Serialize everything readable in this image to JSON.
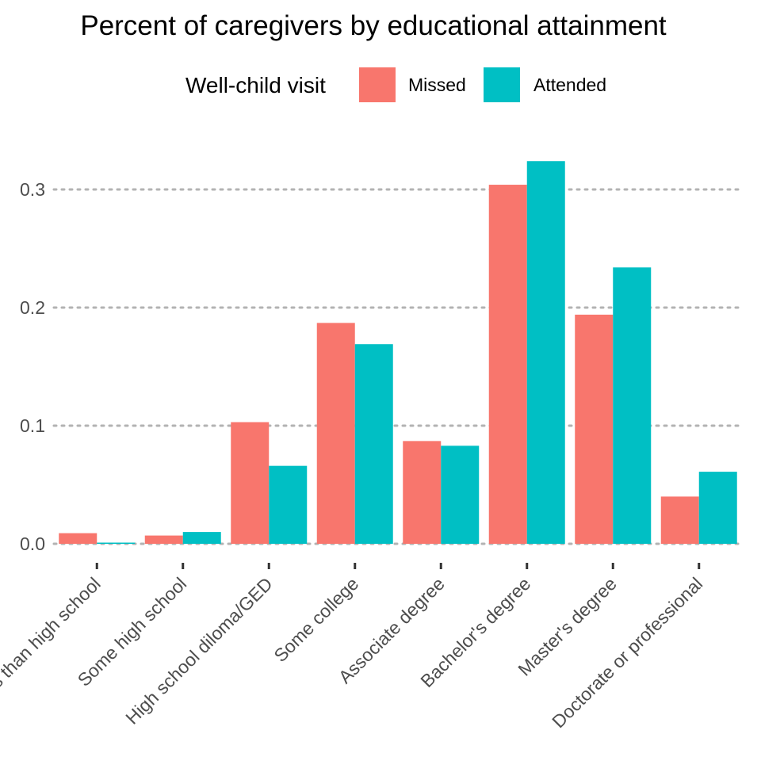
{
  "chart_data": {
    "type": "bar",
    "title": "Percent of caregivers by educational attainment",
    "xlabel": "",
    "ylabel": "",
    "categories": [
      "Less than high school",
      "Some high school",
      "High school diloma/GED",
      "Some college",
      "Associate degree",
      "Bachelor's degree",
      "Master's degree",
      "Doctorate or professional"
    ],
    "series": [
      {
        "name": "Missed",
        "color": "#F8766D",
        "values": [
          0.009,
          0.007,
          0.103,
          0.187,
          0.087,
          0.304,
          0.194,
          0.04
        ]
      },
      {
        "name": "Attended",
        "color": "#00BFC4",
        "values": [
          0.001,
          0.01,
          0.066,
          0.169,
          0.083,
          0.324,
          0.234,
          0.061
        ]
      }
    ],
    "legend": {
      "title": "Well-child visit",
      "position": "top"
    },
    "yticks": [
      "0.0",
      "0.1",
      "0.2",
      "0.3"
    ],
    "ylim": [
      -0.0045,
      0.34
    ],
    "grid": "horizontal dotted",
    "x_tick_rotation": 45
  }
}
